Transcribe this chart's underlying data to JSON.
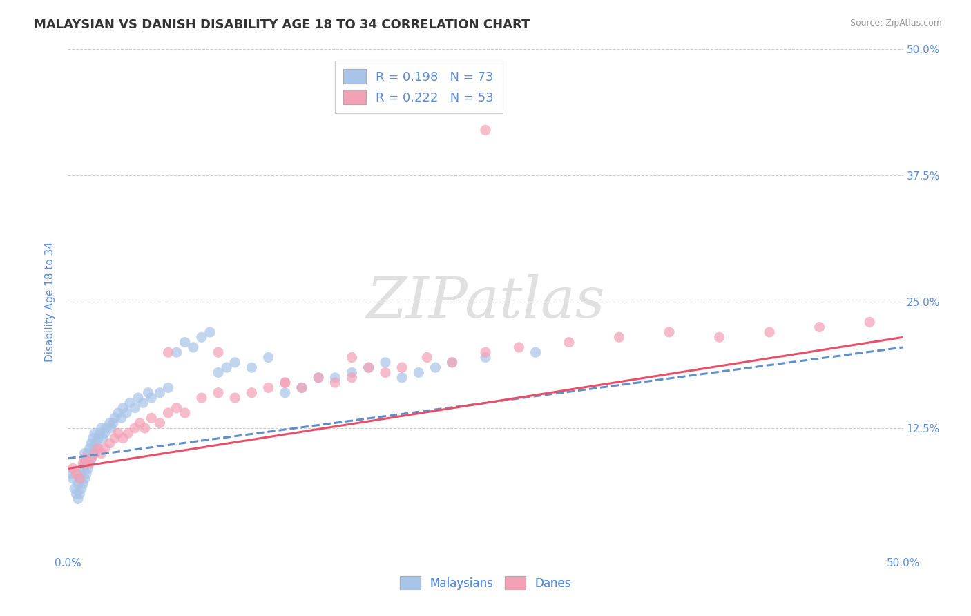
{
  "title": "MALAYSIAN VS DANISH DISABILITY AGE 18 TO 34 CORRELATION CHART",
  "source": "Source: ZipAtlas.com",
  "ylabel": "Disability Age 18 to 34",
  "xlim": [
    0.0,
    0.5
  ],
  "ylim": [
    0.0,
    0.5
  ],
  "xticks": [
    0.0,
    0.125,
    0.25,
    0.375,
    0.5
  ],
  "xticklabels": [
    "0.0%",
    "",
    "",
    "",
    "50.0%"
  ],
  "yticks": [
    0.0,
    0.125,
    0.25,
    0.375,
    0.5
  ],
  "yticklabels": [
    "",
    "12.5%",
    "25.0%",
    "37.5%",
    "50.0%"
  ],
  "r_malaysian": 0.198,
  "n_malaysian": 73,
  "r_danish": 0.222,
  "n_danish": 53,
  "malaysian_color": "#a8c4e8",
  "danish_color": "#f4a0b5",
  "trend_malaysian_color": "#6090cc",
  "trend_danish_color": "#e8506a",
  "background_color": "#ffffff",
  "grid_color": "#cccccc",
  "watermark_color": "#e0e0e0",
  "title_color": "#333333",
  "axis_label_color": "#5b8dd9",
  "tick_color": "#5b8dd9",
  "malaysians_scatter_x": [
    0.002,
    0.003,
    0.004,
    0.005,
    0.006,
    0.006,
    0.007,
    0.007,
    0.008,
    0.008,
    0.009,
    0.009,
    0.01,
    0.01,
    0.01,
    0.011,
    0.011,
    0.012,
    0.012,
    0.013,
    0.013,
    0.014,
    0.014,
    0.015,
    0.015,
    0.016,
    0.016,
    0.017,
    0.018,
    0.019,
    0.02,
    0.021,
    0.022,
    0.023,
    0.025,
    0.026,
    0.027,
    0.028,
    0.03,
    0.032,
    0.033,
    0.035,
    0.037,
    0.04,
    0.042,
    0.045,
    0.048,
    0.05,
    0.055,
    0.06,
    0.065,
    0.07,
    0.075,
    0.08,
    0.085,
    0.09,
    0.095,
    0.1,
    0.11,
    0.12,
    0.13,
    0.14,
    0.15,
    0.16,
    0.17,
    0.18,
    0.19,
    0.2,
    0.21,
    0.22,
    0.23,
    0.25,
    0.28
  ],
  "malaysians_scatter_y": [
    0.08,
    0.075,
    0.065,
    0.06,
    0.055,
    0.07,
    0.06,
    0.075,
    0.065,
    0.08,
    0.07,
    0.085,
    0.075,
    0.09,
    0.1,
    0.08,
    0.095,
    0.085,
    0.1,
    0.09,
    0.105,
    0.095,
    0.11,
    0.1,
    0.115,
    0.105,
    0.12,
    0.11,
    0.115,
    0.12,
    0.125,
    0.115,
    0.12,
    0.125,
    0.13,
    0.125,
    0.13,
    0.135,
    0.14,
    0.135,
    0.145,
    0.14,
    0.15,
    0.145,
    0.155,
    0.15,
    0.16,
    0.155,
    0.16,
    0.165,
    0.2,
    0.21,
    0.205,
    0.215,
    0.22,
    0.18,
    0.185,
    0.19,
    0.185,
    0.195,
    0.16,
    0.165,
    0.175,
    0.175,
    0.18,
    0.185,
    0.19,
    0.175,
    0.18,
    0.185,
    0.19,
    0.195,
    0.2
  ],
  "danes_scatter_x": [
    0.003,
    0.005,
    0.007,
    0.009,
    0.01,
    0.012,
    0.014,
    0.016,
    0.018,
    0.02,
    0.022,
    0.025,
    0.028,
    0.03,
    0.033,
    0.036,
    0.04,
    0.043,
    0.046,
    0.05,
    0.055,
    0.06,
    0.065,
    0.07,
    0.08,
    0.09,
    0.1,
    0.11,
    0.12,
    0.13,
    0.14,
    0.15,
    0.16,
    0.17,
    0.18,
    0.19,
    0.2,
    0.215,
    0.23,
    0.25,
    0.27,
    0.3,
    0.33,
    0.36,
    0.39,
    0.42,
    0.45,
    0.48,
    0.25,
    0.06,
    0.09,
    0.13,
    0.17
  ],
  "danes_scatter_y": [
    0.085,
    0.08,
    0.075,
    0.09,
    0.095,
    0.09,
    0.095,
    0.1,
    0.105,
    0.1,
    0.105,
    0.11,
    0.115,
    0.12,
    0.115,
    0.12,
    0.125,
    0.13,
    0.125,
    0.135,
    0.13,
    0.14,
    0.145,
    0.14,
    0.155,
    0.16,
    0.155,
    0.16,
    0.165,
    0.17,
    0.165,
    0.175,
    0.17,
    0.175,
    0.185,
    0.18,
    0.185,
    0.195,
    0.19,
    0.2,
    0.205,
    0.21,
    0.215,
    0.22,
    0.215,
    0.22,
    0.225,
    0.23,
    0.42,
    0.2,
    0.2,
    0.17,
    0.195
  ],
  "trend_m_x0": 0.0,
  "trend_m_y0": 0.095,
  "trend_m_x1": 0.5,
  "trend_m_y1": 0.205,
  "trend_d_x0": 0.0,
  "trend_d_y0": 0.085,
  "trend_d_x1": 0.5,
  "trend_d_y1": 0.215
}
